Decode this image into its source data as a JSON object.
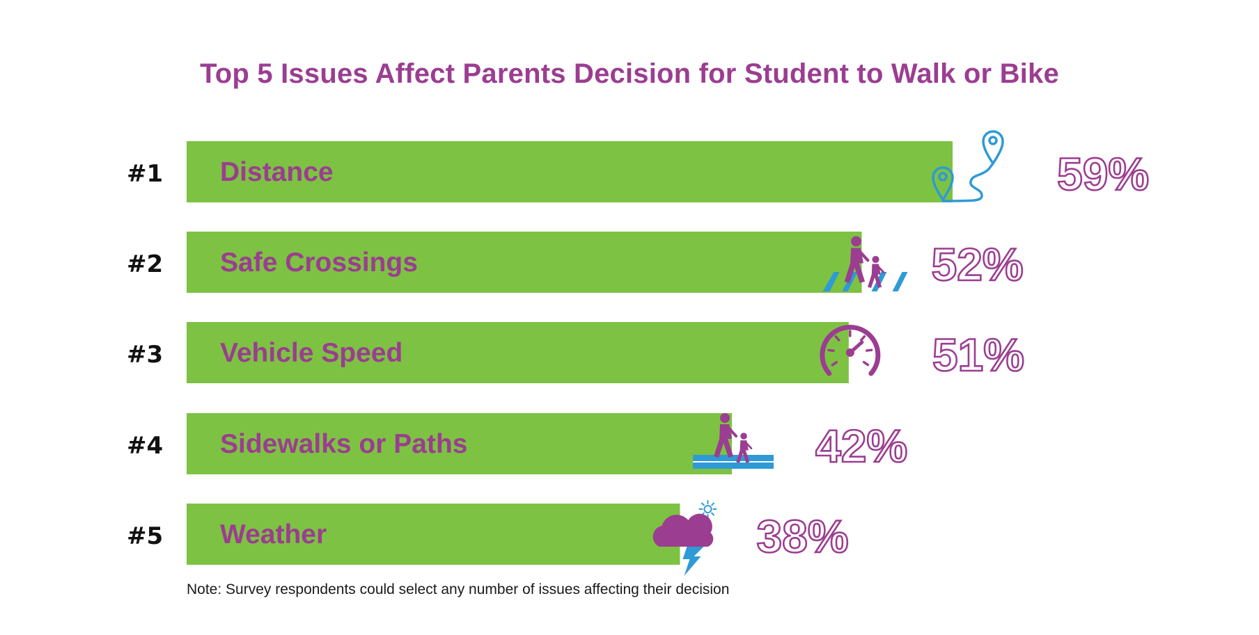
{
  "chart_data": {
    "type": "bar",
    "orientation": "horizontal",
    "title": "Top 5 Issues Affect Parents Decision for Student to Walk or Bike",
    "categories": [
      "Distance",
      "Safe Crossings",
      "Vehicle Speed",
      "Sidewalks or Paths",
      "Weather"
    ],
    "ranks": [
      "#1",
      "#2",
      "#3",
      "#4",
      "#5"
    ],
    "values": [
      59,
      52,
      51,
      42,
      38
    ],
    "value_labels": [
      "59%",
      "52%",
      "51%",
      "42%",
      "38%"
    ],
    "icons": [
      "map-route-icon",
      "crosswalk-pedestrians-icon",
      "speedometer-icon",
      "sidewalk-pedestrians-icon",
      "storm-cloud-icon"
    ],
    "xlim": [
      0,
      100
    ],
    "note": "Note: Survey respondents could select any number of issues affecting their decision",
    "colors": {
      "bar": "#7dc242",
      "label": "#9b3d91",
      "rank": "#111111",
      "icon_blue": "#2e9ad6",
      "icon_purple": "#9b3d91"
    }
  }
}
